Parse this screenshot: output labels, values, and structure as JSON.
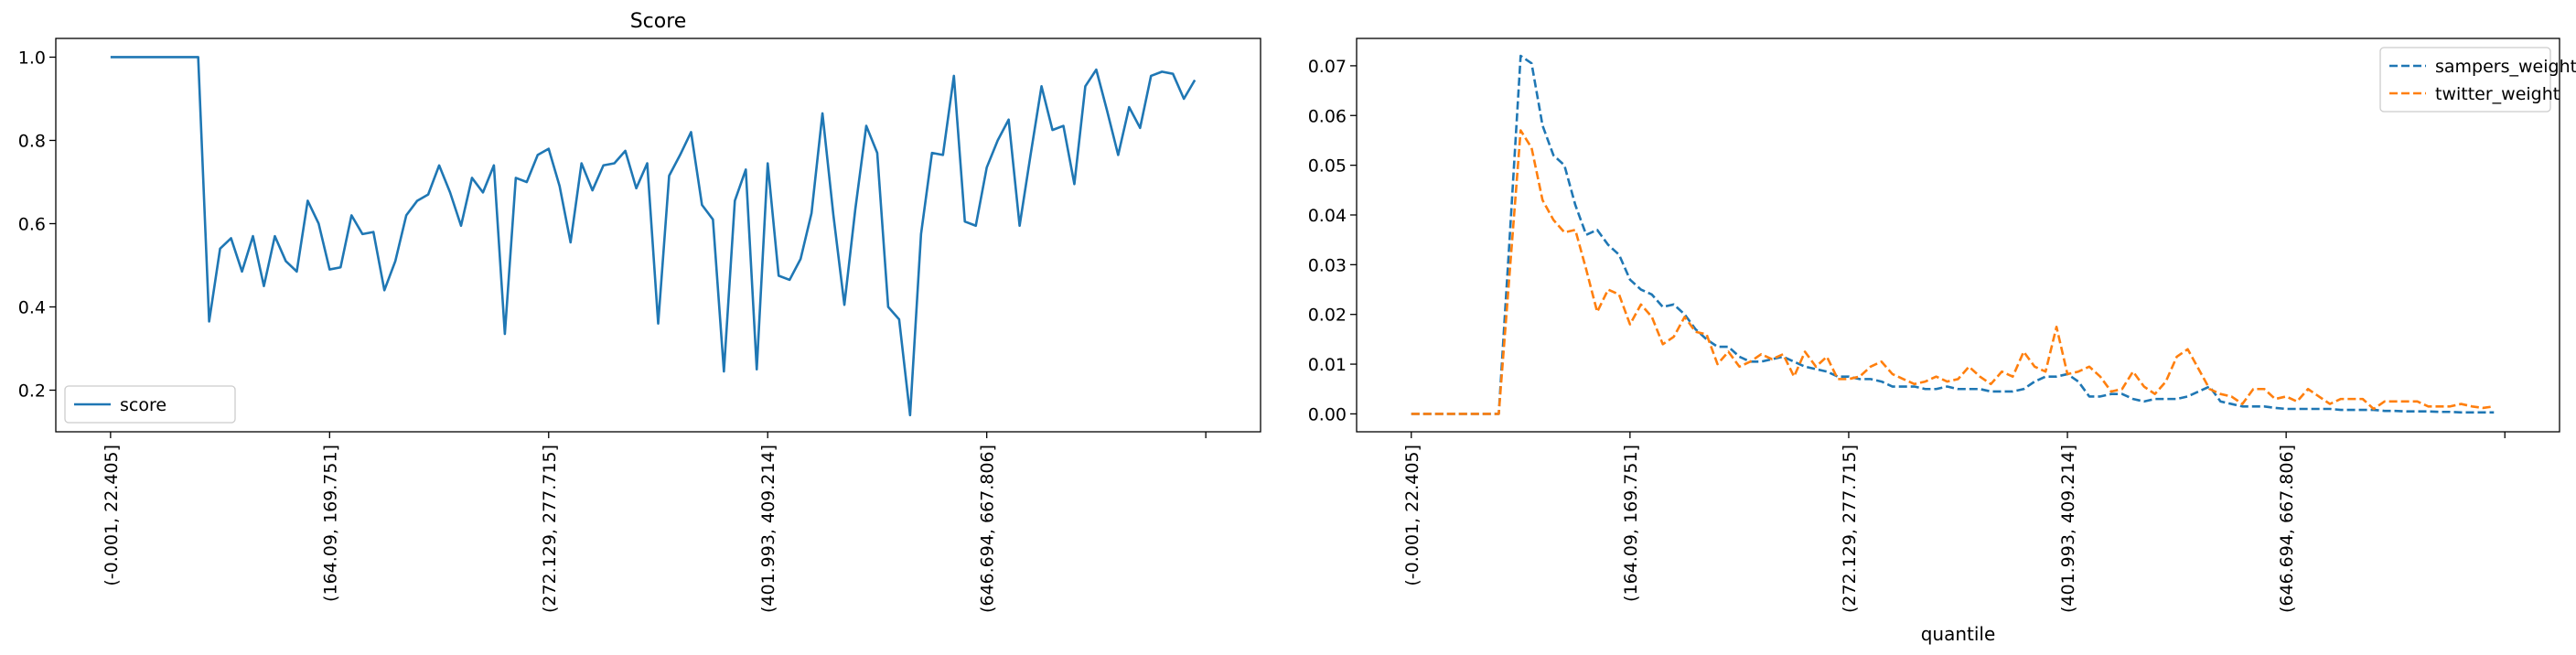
{
  "chart_data": [
    {
      "type": "line",
      "title": "Score",
      "xlabel": "",
      "ylabel": "",
      "x_index_range": [
        -5,
        105
      ],
      "ylim": [
        0.1,
        1.045
      ],
      "yticks": [
        0.2,
        0.4,
        0.6,
        0.8,
        1.0
      ],
      "ytick_labels": [
        "0.2",
        "0.4",
        "0.6",
        "0.8",
        "1.0"
      ],
      "xtick_positions": [
        0,
        20,
        40,
        60,
        80,
        100
      ],
      "xtick_labels": [
        "(-0.001, 22.405]",
        "(164.09, 169.751]",
        "(272.129, 277.715]",
        "(401.993, 409.214]",
        "(646.694, 667.806]",
        ""
      ],
      "grid": false,
      "legend_position": "lower-left",
      "series": [
        {
          "name": "score",
          "color": "#1f77b4",
          "style": "solid",
          "values": [
            1.0,
            1.0,
            1.0,
            1.0,
            1.0,
            1.0,
            1.0,
            1.0,
            1.0,
            0.365,
            0.54,
            0.565,
            0.485,
            0.57,
            0.45,
            0.57,
            0.51,
            0.485,
            0.655,
            0.6,
            0.49,
            0.495,
            0.62,
            0.575,
            0.58,
            0.44,
            0.51,
            0.62,
            0.655,
            0.67,
            0.74,
            0.675,
            0.595,
            0.71,
            0.675,
            0.74,
            0.335,
            0.71,
            0.7,
            0.765,
            0.78,
            0.69,
            0.555,
            0.745,
            0.68,
            0.74,
            0.745,
            0.775,
            0.685,
            0.745,
            0.36,
            0.715,
            0.765,
            0.82,
            0.645,
            0.61,
            0.245,
            0.655,
            0.73,
            0.25,
            0.745,
            0.475,
            0.465,
            0.515,
            0.625,
            0.865,
            0.62,
            0.405,
            0.635,
            0.835,
            0.77,
            0.4,
            0.37,
            0.14,
            0.575,
            0.77,
            0.765,
            0.955,
            0.605,
            0.595,
            0.735,
            0.8,
            0.85,
            0.595,
            0.765,
            0.93,
            0.825,
            0.835,
            0.695,
            0.93,
            0.97,
            0.87,
            0.765,
            0.88,
            0.83,
            0.955,
            0.965,
            0.96,
            0.9,
            0.945
          ]
        }
      ]
    },
    {
      "type": "line",
      "title": "",
      "xlabel": "quantile",
      "ylabel": "",
      "x_index_range": [
        -5,
        105
      ],
      "ylim": [
        -0.0036,
        0.0755
      ],
      "yticks": [
        0.0,
        0.01,
        0.02,
        0.03,
        0.04,
        0.05,
        0.06,
        0.07
      ],
      "ytick_labels": [
        "0.00",
        "0.01",
        "0.02",
        "0.03",
        "0.04",
        "0.05",
        "0.06",
        "0.07"
      ],
      "xtick_positions": [
        0,
        20,
        40,
        60,
        80,
        100
      ],
      "xtick_labels": [
        "(-0.001, 22.405]",
        "(164.09, 169.751]",
        "(272.129, 277.715]",
        "(401.993, 409.214]",
        "(646.694, 667.806]",
        ""
      ],
      "grid": false,
      "legend_position": "upper-right",
      "series": [
        {
          "name": "sampers_weight",
          "color": "#1f77b4",
          "style": "dashed",
          "values": [
            0,
            0,
            0,
            0,
            0,
            0,
            0,
            0,
            0,
            0.0355,
            0.072,
            0.0705,
            0.058,
            0.052,
            0.05,
            0.042,
            0.036,
            0.037,
            0.034,
            0.032,
            0.027,
            0.025,
            0.024,
            0.0215,
            0.022,
            0.02,
            0.017,
            0.015,
            0.0135,
            0.0135,
            0.0115,
            0.0105,
            0.0105,
            0.011,
            0.0115,
            0.0105,
            0.0095,
            0.009,
            0.0085,
            0.0075,
            0.0075,
            0.007,
            0.007,
            0.0065,
            0.0055,
            0.0055,
            0.0055,
            0.005,
            0.005,
            0.0055,
            0.005,
            0.005,
            0.005,
            0.0045,
            0.0045,
            0.0045,
            0.005,
            0.0065,
            0.0075,
            0.0075,
            0.008,
            0.0065,
            0.0035,
            0.0035,
            0.004,
            0.004,
            0.003,
            0.0025,
            0.003,
            0.003,
            0.003,
            0.0035,
            0.0045,
            0.0055,
            0.0025,
            0.002,
            0.0015,
            0.0015,
            0.0015,
            0.0012,
            0.001,
            0.001,
            0.001,
            0.001,
            0.001,
            0.0008,
            0.0008,
            0.0008,
            0.0008,
            0.0006,
            0.0006,
            0.0005,
            0.0005,
            0.0005,
            0.0004,
            0.0004,
            0.0003,
            0.0003,
            0.0003,
            0.0003
          ]
        },
        {
          "name": "twitter_weight",
          "color": "#ff7f0e",
          "style": "dashed",
          "values": [
            0,
            0,
            0,
            0,
            0,
            0,
            0,
            0,
            0,
            0.0285,
            0.057,
            0.0535,
            0.043,
            0.039,
            0.0365,
            0.037,
            0.029,
            0.0205,
            0.025,
            0.024,
            0.018,
            0.022,
            0.0195,
            0.014,
            0.0155,
            0.0195,
            0.0165,
            0.016,
            0.01,
            0.0125,
            0.0095,
            0.0105,
            0.012,
            0.011,
            0.012,
            0.0075,
            0.0125,
            0.0095,
            0.0115,
            0.007,
            0.007,
            0.0075,
            0.0095,
            0.0105,
            0.008,
            0.007,
            0.006,
            0.0065,
            0.0075,
            0.0065,
            0.007,
            0.0095,
            0.0075,
            0.006,
            0.0085,
            0.0075,
            0.0125,
            0.0095,
            0.0085,
            0.0175,
            0.008,
            0.0085,
            0.0095,
            0.0075,
            0.0045,
            0.005,
            0.0085,
            0.0055,
            0.004,
            0.0065,
            0.0115,
            0.013,
            0.009,
            0.005,
            0.004,
            0.0035,
            0.002,
            0.005,
            0.005,
            0.003,
            0.0035,
            0.0025,
            0.005,
            0.0035,
            0.002,
            0.003,
            0.003,
            0.003,
            0.001,
            0.0025,
            0.0025,
            0.0025,
            0.0025,
            0.0015,
            0.0015,
            0.0015,
            0.002,
            0.0015,
            0.0012,
            0.0015
          ]
        }
      ]
    }
  ]
}
